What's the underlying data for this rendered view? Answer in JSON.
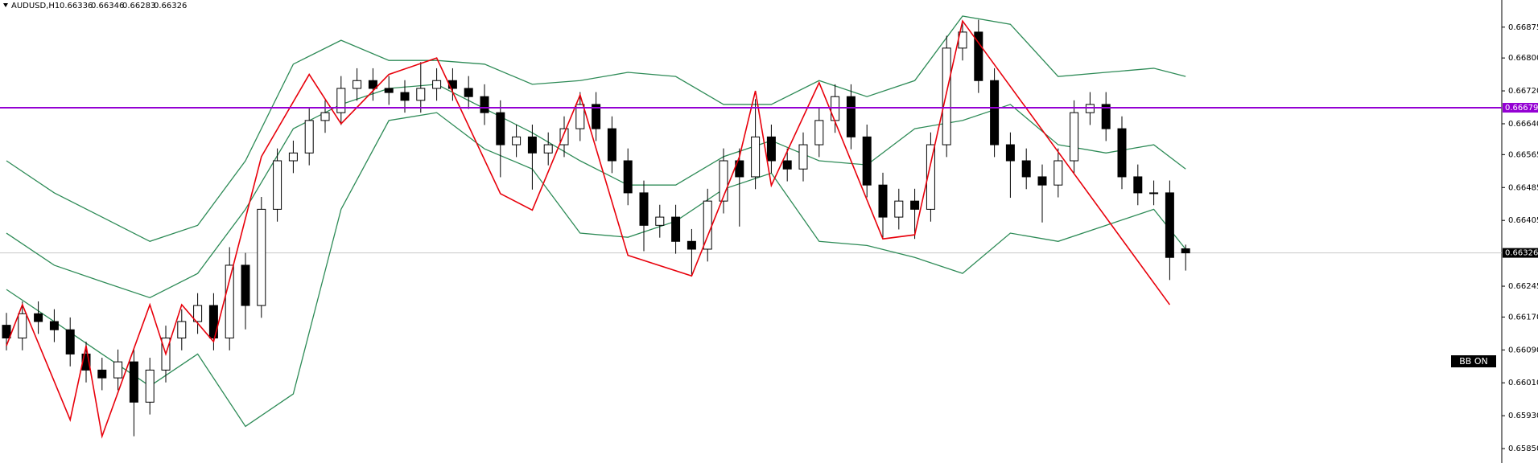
{
  "chart_data": {
    "type": "candlestick",
    "title": "AUDUSD,H1",
    "open": [
      0.6615,
      0.66119,
      0.66178,
      0.66159,
      0.66139,
      0.6608,
      0.66041,
      0.66022,
      0.66061,
      0.65963,
      0.66041,
      0.66119,
      0.66159,
      0.66198,
      0.66119,
      0.66296,
      0.66198,
      0.66432,
      0.6655,
      0.66569,
      0.66648,
      0.66667,
      0.66726,
      0.66745,
      0.66726,
      0.66716,
      0.66697,
      0.66726,
      0.66745,
      0.66726,
      0.66706,
      0.66667,
      0.66589,
      0.66608,
      0.66569,
      0.66589,
      0.66628,
      0.66687,
      0.66628,
      0.6655,
      0.66472,
      0.66393,
      0.66413,
      0.66354,
      0.66335,
      0.66452,
      0.6655,
      0.66511,
      0.66608,
      0.6655,
      0.6653,
      0.66589,
      0.66648,
      0.66706,
      0.66608,
      0.66491,
      0.66413,
      0.66452,
      0.66432,
      0.66589,
      0.66824,
      0.66863,
      0.66745,
      0.66589,
      0.6655,
      0.66511,
      0.66491,
      0.6655,
      0.66667,
      0.66687,
      0.66628,
      0.66511,
      0.66472,
      0.66472,
      0.66336
    ],
    "high": [
      0.6618,
      0.66208,
      0.66208,
      0.66189,
      0.66169,
      0.6611,
      0.66071,
      0.66091,
      0.66091,
      0.66071,
      0.66149,
      0.66189,
      0.66228,
      0.66228,
      0.6634,
      0.66326,
      0.66462,
      0.6658,
      0.66599,
      0.66678,
      0.66697,
      0.66756,
      0.66775,
      0.66775,
      0.66756,
      0.66746,
      0.6679,
      0.66775,
      0.66775,
      0.66756,
      0.66736,
      0.66697,
      0.66638,
      0.66638,
      0.66619,
      0.66658,
      0.66717,
      0.66717,
      0.66658,
      0.6658,
      0.66502,
      0.66443,
      0.66443,
      0.66384,
      0.66482,
      0.6658,
      0.6658,
      0.667,
      0.66638,
      0.6658,
      0.66619,
      0.66678,
      0.66736,
      0.66736,
      0.66638,
      0.66521,
      0.66482,
      0.66482,
      0.66619,
      0.66854,
      0.66885,
      0.66893,
      0.66775,
      0.66619,
      0.6658,
      0.66541,
      0.6658,
      0.66697,
      0.66717,
      0.66717,
      0.66658,
      0.66541,
      0.66502,
      0.66502,
      0.66346
    ],
    "low": [
      0.66089,
      0.66089,
      0.66129,
      0.66109,
      0.6605,
      0.66011,
      0.65992,
      0.65992,
      0.6588,
      0.65933,
      0.66011,
      0.66089,
      0.66129,
      0.66089,
      0.66089,
      0.6614,
      0.66168,
      0.66402,
      0.6652,
      0.66539,
      0.66618,
      0.66637,
      0.66696,
      0.66696,
      0.66686,
      0.66667,
      0.66667,
      0.66696,
      0.66696,
      0.66676,
      0.66637,
      0.6651,
      0.66559,
      0.6648,
      0.66539,
      0.66559,
      0.66598,
      0.66598,
      0.6652,
      0.66442,
      0.6633,
      0.66363,
      0.66324,
      0.6627,
      0.66305,
      0.66422,
      0.6639,
      0.66481,
      0.6652,
      0.665,
      0.665,
      0.66559,
      0.66618,
      0.66578,
      0.66461,
      0.66363,
      0.66383,
      0.6636,
      0.66402,
      0.66559,
      0.66794,
      0.66715,
      0.66559,
      0.6646,
      0.66481,
      0.664,
      0.66461,
      0.6652,
      0.66637,
      0.66598,
      0.66481,
      0.66442,
      0.66442,
      0.6626,
      0.66283
    ],
    "close": [
      0.66119,
      0.66178,
      0.66159,
      0.66139,
      0.6608,
      0.66041,
      0.66022,
      0.66061,
      0.65963,
      0.66041,
      0.66119,
      0.66159,
      0.66198,
      0.66119,
      0.66296,
      0.66198,
      0.66432,
      0.6655,
      0.66569,
      0.66648,
      0.66667,
      0.66726,
      0.66745,
      0.66726,
      0.66716,
      0.66697,
      0.66726,
      0.66745,
      0.66726,
      0.66706,
      0.66667,
      0.66589,
      0.66608,
      0.66569,
      0.66589,
      0.66628,
      0.66687,
      0.66628,
      0.6655,
      0.66472,
      0.66393,
      0.66413,
      0.66354,
      0.66335,
      0.66452,
      0.6655,
      0.66511,
      0.66608,
      0.6655,
      0.6653,
      0.66589,
      0.66648,
      0.66706,
      0.66608,
      0.66491,
      0.66413,
      0.66452,
      0.66432,
      0.66589,
      0.66824,
      0.66863,
      0.66745,
      0.66589,
      0.6655,
      0.66511,
      0.66491,
      0.6655,
      0.66667,
      0.66687,
      0.66628,
      0.66511,
      0.66472,
      0.66472,
      0.66315,
      0.66326
    ],
    "bands": [
      {
        "color": "#2e8b57",
        "x": [
          0,
          3,
          6,
          9,
          12,
          15,
          18,
          21,
          24,
          27,
          30,
          33,
          36,
          39,
          42,
          45,
          48,
          51,
          54,
          57,
          60,
          63,
          66,
          69,
          72,
          74
        ],
        "values": [
          0.6655,
          0.66472,
          0.66413,
          0.66354,
          0.66393,
          0.6655,
          0.66785,
          0.66843,
          0.66794,
          0.66794,
          0.66785,
          0.66736,
          0.66745,
          0.66765,
          0.66755,
          0.66687,
          0.66687,
          0.66745,
          0.66706,
          0.66745,
          0.66902,
          0.66882,
          0.66755,
          0.66765,
          0.66775,
          0.66755
        ]
      },
      {
        "color": "#2e8b57",
        "x": [
          0,
          3,
          6,
          9,
          12,
          15,
          18,
          21,
          24,
          27,
          30,
          33,
          36,
          39,
          42,
          45,
          48,
          51,
          54,
          57,
          60,
          63,
          66,
          69,
          72,
          74
        ],
        "values": [
          0.66374,
          0.66296,
          0.66256,
          0.66217,
          0.66276,
          0.66432,
          0.66628,
          0.66687,
          0.66726,
          0.66736,
          0.66677,
          0.66618,
          0.6655,
          0.66491,
          0.66491,
          0.6656,
          0.66599,
          0.6655,
          0.6654,
          0.66628,
          0.66648,
          0.66687,
          0.66589,
          0.66569,
          0.66589,
          0.6653
        ]
      },
      {
        "color": "#2e8b57",
        "x": [
          0,
          3,
          6,
          9,
          12,
          15,
          18,
          21,
          24,
          27,
          30,
          33,
          36,
          39,
          42,
          45,
          48,
          51,
          54,
          57,
          60,
          63,
          66,
          69,
          72,
          74
        ],
        "values": [
          0.66237,
          0.66159,
          0.6608,
          0.66002,
          0.6608,
          0.65904,
          0.65983,
          0.66432,
          0.66648,
          0.66667,
          0.66579,
          0.6653,
          0.66374,
          0.66364,
          0.66403,
          0.66481,
          0.6652,
          0.66354,
          0.66344,
          0.66315,
          0.66276,
          0.66374,
          0.66354,
          0.66393,
          0.66432,
          0.66335
        ]
      }
    ],
    "zigzag": {
      "color": "#e8000b",
      "x": [
        0,
        1,
        4,
        5,
        6,
        9,
        10,
        11,
        13,
        16,
        19,
        21,
        24,
        27,
        31,
        33,
        36,
        39,
        43,
        46,
        47,
        48,
        51,
        55,
        57,
        60,
        73
      ],
      "values": [
        0.661,
        0.662,
        0.6592,
        0.661,
        0.6588,
        0.662,
        0.6608,
        0.662,
        0.6611,
        0.6656,
        0.6676,
        0.6664,
        0.6676,
        0.668,
        0.6647,
        0.6643,
        0.6671,
        0.6632,
        0.6627,
        0.6656,
        0.6672,
        0.6649,
        0.6674,
        0.6636,
        0.6637,
        0.6689,
        0.662
      ]
    },
    "hline": {
      "value": 0.66679,
      "color": "#9400d3"
    },
    "badge": "BB ON",
    "ylim": [
      0.65815,
      0.66941
    ],
    "yticks": [
      0.66875,
      {
        "value": 0.668,
        "label": "0.66800"
      },
      {
        "value": 0.6672,
        "label": "0.66720"
      },
      {
        "value": 0.6664,
        "label": "0.66640"
      },
      0.66565,
      0.66485,
      0.66405,
      0.66245,
      {
        "value": 0.6617,
        "label": "0.66170"
      },
      {
        "value": 0.6609,
        "label": "0.66090"
      },
      {
        "value": 0.6601,
        "label": "0.66010"
      },
      {
        "value": 0.6593,
        "label": "0.65930"
      },
      {
        "value": 0.6585,
        "label": "0.65850"
      }
    ]
  }
}
